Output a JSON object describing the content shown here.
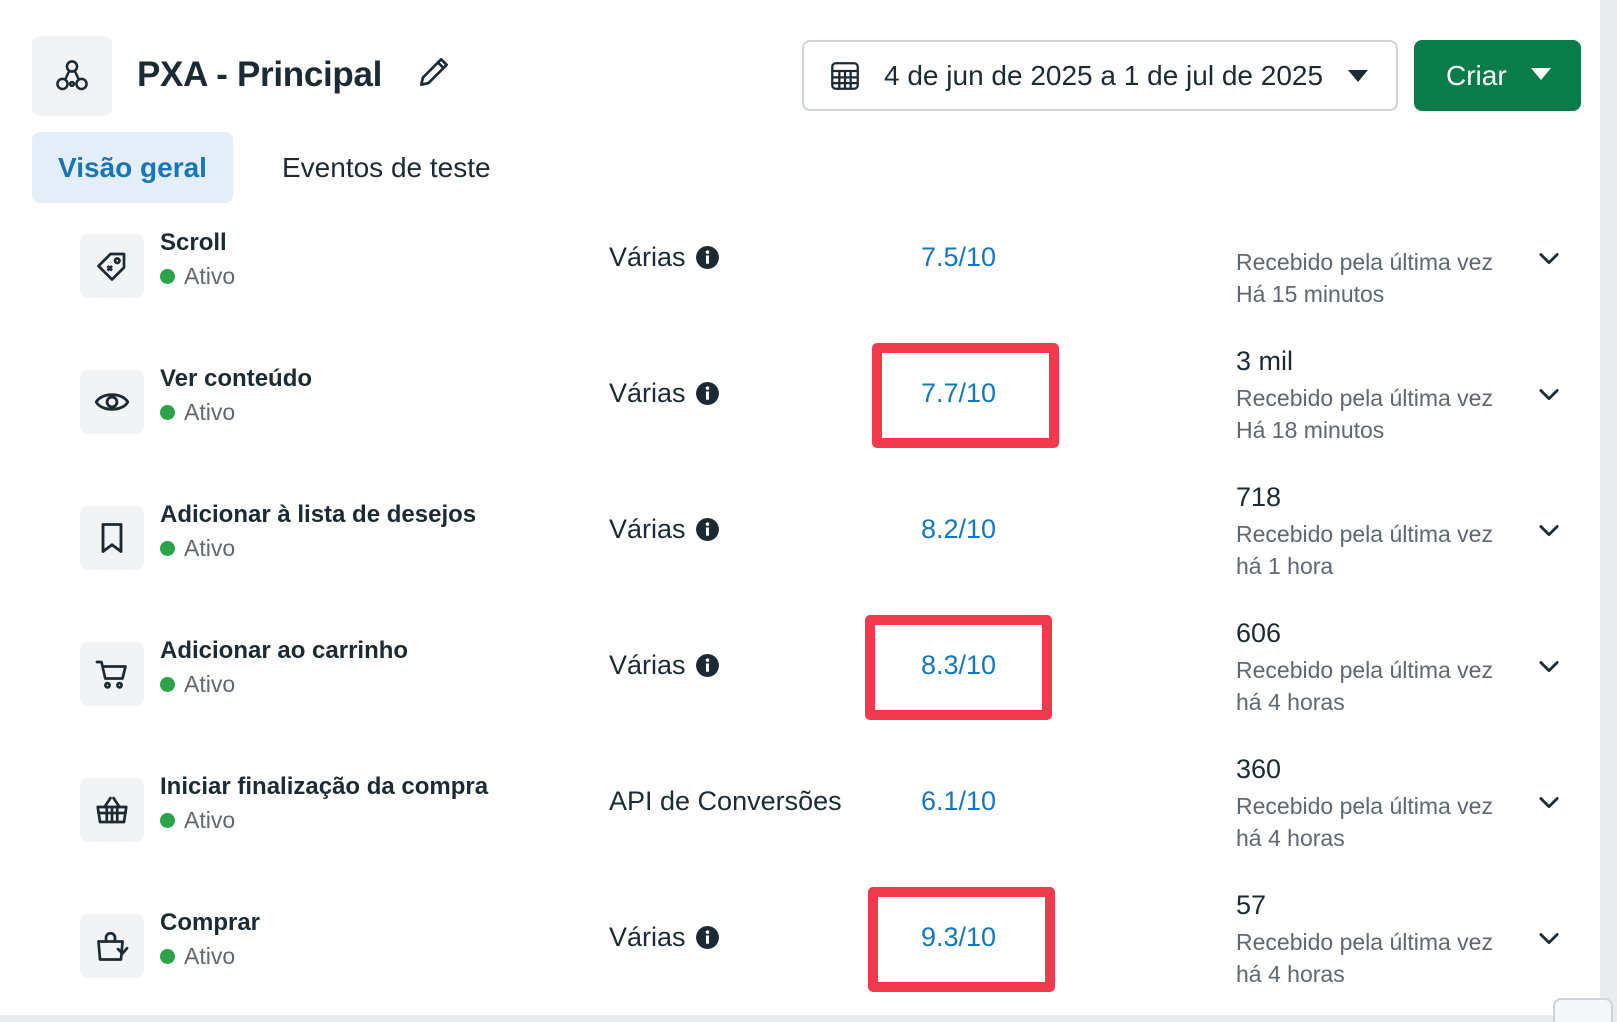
{
  "header": {
    "title": "PXA - Principal",
    "date_range": "4 de jun de 2025 a 1 de jul de 2025",
    "create_label": "Criar",
    "icons": {
      "pixel": "pixel-network-icon",
      "edit": "pencil-icon",
      "calendar": "calendar-icon",
      "caret": "caret-down-icon"
    }
  },
  "tabs": [
    {
      "label": "Visão geral",
      "active": true
    },
    {
      "label": "Eventos de teste",
      "active": false
    }
  ],
  "events": [
    {
      "name": "Scroll",
      "status": "Ativo",
      "integration": "Várias",
      "score": "7.5/10",
      "count": "",
      "received": "Recebido pela última vez Há 15 minutos",
      "icon": "tag-icon",
      "highlighted": false
    },
    {
      "name": "Ver conteúdo",
      "status": "Ativo",
      "integration": "Várias",
      "score": "7.7/10",
      "count": "3 mil",
      "received": "Recebido pela última vez Há 18 minutos",
      "icon": "eye-icon",
      "highlighted": true
    },
    {
      "name": "Adicionar à lista de desejos",
      "status": "Ativo",
      "integration": "Várias",
      "score": "8.2/10",
      "count": "718",
      "received": "Recebido pela última vez há 1 hora",
      "icon": "bookmark-icon",
      "highlighted": false
    },
    {
      "name": "Adicionar ao carrinho",
      "status": "Ativo",
      "integration": "Várias",
      "score": "8.3/10",
      "count": "606",
      "received": "Recebido pela última vez há 4 horas",
      "icon": "cart-icon",
      "highlighted": true
    },
    {
      "name": "Iniciar finalização da compra",
      "status": "Ativo",
      "integration": "API de Conversões",
      "score": "6.1/10",
      "count": "360",
      "received": "Recebido pela última vez há 4 horas",
      "icon": "basket-icon",
      "highlighted": false
    },
    {
      "name": "Comprar",
      "status": "Ativo",
      "integration": "Várias",
      "score": "9.3/10",
      "count": "57",
      "received": "Recebido pela última vez há 4 horas",
      "icon": "shopping-bag-icon",
      "highlighted": true
    }
  ],
  "colors": {
    "accent": "#1876b8",
    "primary_button": "#0a7c4a",
    "status_active": "#31a24c",
    "highlight": "#f23a4e"
  }
}
